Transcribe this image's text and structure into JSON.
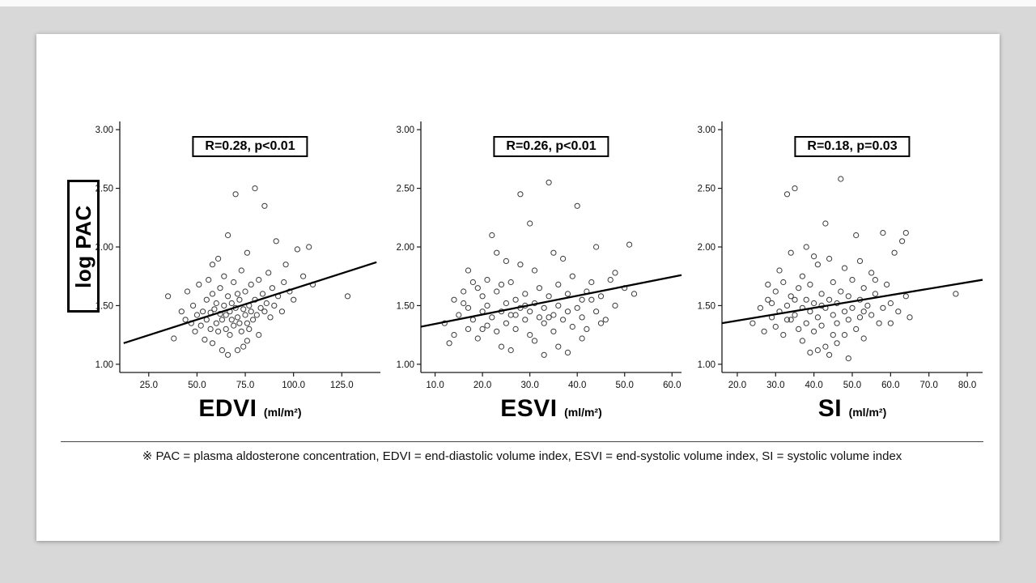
{
  "slide": {
    "y_axis_label": "log PAC",
    "footnote": "※ PAC = plasma aldosterone concentration, EDVI = end-diastolic volume index, ESVI = end-systolic volume index, SI = systolic volume index"
  },
  "chart_data": [
    {
      "type": "scatter",
      "annotation": "R=0.28, p<0.01",
      "xlabel": "EDVI",
      "xlabel_unit": "(ml/m²)",
      "ylabel": "log PAC",
      "xlim": [
        10,
        145
      ],
      "ylim": [
        0.93,
        3.07
      ],
      "xticks": [
        25.0,
        50.0,
        75.0,
        100.0,
        125.0
      ],
      "yticks": [
        1.0,
        1.5,
        2.0,
        2.5,
        3.0
      ],
      "trendline": {
        "x1": 12,
        "y1": 1.18,
        "x2": 143,
        "y2": 1.87
      },
      "points": [
        [
          35,
          1.58
        ],
        [
          38,
          1.22
        ],
        [
          42,
          1.45
        ],
        [
          44,
          1.38
        ],
        [
          45,
          1.62
        ],
        [
          47,
          1.35
        ],
        [
          48,
          1.5
        ],
        [
          49,
          1.28
        ],
        [
          50,
          1.42
        ],
        [
          51,
          1.68
        ],
        [
          52,
          1.33
        ],
        [
          53,
          1.45
        ],
        [
          54,
          1.21
        ],
        [
          55,
          1.55
        ],
        [
          55,
          1.38
        ],
        [
          56,
          1.72
        ],
        [
          57,
          1.44
        ],
        [
          57,
          1.3
        ],
        [
          58,
          1.6
        ],
        [
          58,
          1.18
        ],
        [
          59,
          1.47
        ],
        [
          60,
          1.35
        ],
        [
          60,
          1.52
        ],
        [
          61,
          1.28
        ],
        [
          61,
          1.9
        ],
        [
          62,
          1.43
        ],
        [
          62,
          1.65
        ],
        [
          63,
          1.38
        ],
        [
          63,
          1.12
        ],
        [
          64,
          1.5
        ],
        [
          64,
          1.75
        ],
        [
          65,
          1.42
        ],
        [
          65,
          1.3
        ],
        [
          66,
          1.58
        ],
        [
          66,
          2.1
        ],
        [
          67,
          1.45
        ],
        [
          67,
          1.25
        ],
        [
          68,
          1.52
        ],
        [
          68,
          1.38
        ],
        [
          69,
          1.7
        ],
        [
          69,
          1.33
        ],
        [
          70,
          1.48
        ],
        [
          70,
          2.45
        ],
        [
          71,
          1.4
        ],
        [
          71,
          1.6
        ],
        [
          72,
          1.35
        ],
        [
          72,
          1.55
        ],
        [
          73,
          1.28
        ],
        [
          73,
          1.8
        ],
        [
          74,
          1.47
        ],
        [
          74,
          1.15
        ],
        [
          75,
          1.62
        ],
        [
          75,
          1.42
        ],
        [
          76,
          1.35
        ],
        [
          76,
          1.95
        ],
        [
          77,
          1.5
        ],
        [
          77,
          1.3
        ],
        [
          78,
          1.68
        ],
        [
          78,
          1.45
        ],
        [
          79,
          1.38
        ],
        [
          80,
          2.5
        ],
        [
          80,
          1.55
        ],
        [
          81,
          1.42
        ],
        [
          82,
          1.25
        ],
        [
          82,
          1.72
        ],
        [
          83,
          1.48
        ],
        [
          84,
          1.6
        ],
        [
          85,
          2.35
        ],
        [
          85,
          1.45
        ],
        [
          86,
          1.52
        ],
        [
          87,
          1.78
        ],
        [
          88,
          1.4
        ],
        [
          89,
          1.65
        ],
        [
          90,
          1.5
        ],
        [
          91,
          2.05
        ],
        [
          92,
          1.58
        ],
        [
          94,
          1.45
        ],
        [
          95,
          1.7
        ],
        [
          96,
          1.85
        ],
        [
          98,
          1.62
        ],
        [
          100,
          1.55
        ],
        [
          102,
          1.98
        ],
        [
          105,
          1.75
        ],
        [
          108,
          2.0
        ],
        [
          110,
          1.68
        ],
        [
          128,
          1.58
        ],
        [
          66,
          1.08
        ],
        [
          71,
          1.12
        ],
        [
          76,
          1.2
        ],
        [
          58,
          1.85
        ]
      ]
    },
    {
      "type": "scatter",
      "annotation": "R=0.26, p<0.01",
      "xlabel": "ESVI",
      "xlabel_unit": "(ml/m²)",
      "ylabel": "log PAC",
      "xlim": [
        7,
        62
      ],
      "ylim": [
        0.93,
        3.07
      ],
      "xticks": [
        10.0,
        20.0,
        30.0,
        40.0,
        50.0,
        60.0
      ],
      "yticks": [
        1.0,
        1.5,
        2.0,
        2.5,
        3.0
      ],
      "trendline": {
        "x1": 7,
        "y1": 1.32,
        "x2": 62,
        "y2": 1.76
      },
      "points": [
        [
          12,
          1.35
        ],
        [
          14,
          1.55
        ],
        [
          14,
          1.25
        ],
        [
          15,
          1.42
        ],
        [
          16,
          1.62
        ],
        [
          17,
          1.3
        ],
        [
          17,
          1.48
        ],
        [
          18,
          1.38
        ],
        [
          18,
          1.7
        ],
        [
          19,
          1.22
        ],
        [
          20,
          1.45
        ],
        [
          20,
          1.58
        ],
        [
          21,
          1.33
        ],
        [
          21,
          1.5
        ],
        [
          22,
          1.4
        ],
        [
          22,
          2.1
        ],
        [
          23,
          1.28
        ],
        [
          23,
          1.62
        ],
        [
          24,
          1.45
        ],
        [
          24,
          1.15
        ],
        [
          25,
          1.52
        ],
        [
          25,
          1.35
        ],
        [
          26,
          1.7
        ],
        [
          26,
          1.42
        ],
        [
          27,
          1.3
        ],
        [
          27,
          1.55
        ],
        [
          28,
          1.48
        ],
        [
          28,
          2.45
        ],
        [
          29,
          1.38
        ],
        [
          29,
          1.6
        ],
        [
          30,
          1.25
        ],
        [
          30,
          1.45
        ],
        [
          31,
          1.52
        ],
        [
          31,
          1.8
        ],
        [
          32,
          1.4
        ],
        [
          32,
          1.65
        ],
        [
          33,
          1.35
        ],
        [
          33,
          1.48
        ],
        [
          34,
          2.55
        ],
        [
          34,
          1.58
        ],
        [
          35,
          1.42
        ],
        [
          35,
          1.28
        ],
        [
          36,
          1.68
        ],
        [
          36,
          1.5
        ],
        [
          37,
          1.38
        ],
        [
          37,
          1.9
        ],
        [
          38,
          1.45
        ],
        [
          38,
          1.6
        ],
        [
          39,
          1.32
        ],
        [
          39,
          1.75
        ],
        [
          40,
          1.48
        ],
        [
          40,
          2.35
        ],
        [
          41,
          1.55
        ],
        [
          41,
          1.4
        ],
        [
          42,
          1.62
        ],
        [
          42,
          1.3
        ],
        [
          43,
          1.7
        ],
        [
          44,
          1.45
        ],
        [
          44,
          2.0
        ],
        [
          45,
          1.58
        ],
        [
          46,
          1.38
        ],
        [
          47,
          1.72
        ],
        [
          48,
          1.5
        ],
        [
          50,
          1.65
        ],
        [
          51,
          2.02
        ],
        [
          52,
          1.6
        ],
        [
          13,
          1.18
        ],
        [
          19,
          1.65
        ],
        [
          26,
          1.12
        ],
        [
          31,
          1.2
        ],
        [
          33,
          1.08
        ],
        [
          28,
          1.85
        ],
        [
          23,
          1.95
        ],
        [
          36,
          1.15
        ],
        [
          41,
          1.22
        ],
        [
          30,
          2.2
        ],
        [
          25,
          1.88
        ],
        [
          21,
          1.72
        ],
        [
          16,
          1.52
        ],
        [
          45,
          1.35
        ],
        [
          48,
          1.78
        ],
        [
          38,
          1.1
        ],
        [
          34,
          1.4
        ],
        [
          29,
          1.5
        ],
        [
          24,
          1.68
        ],
        [
          20,
          1.3
        ],
        [
          35,
          1.95
        ],
        [
          43,
          1.55
        ],
        [
          17,
          1.8
        ],
        [
          27,
          1.42
        ]
      ]
    },
    {
      "type": "scatter",
      "annotation": "R=0.18, p=0.03",
      "xlabel": "SI",
      "xlabel_unit": "(ml/m²)",
      "ylabel": "log PAC",
      "xlim": [
        16,
        84
      ],
      "ylim": [
        0.93,
        3.07
      ],
      "xticks": [
        20.0,
        30.0,
        40.0,
        50.0,
        60.0,
        70.0,
        80.0
      ],
      "yticks": [
        1.0,
        1.5,
        2.0,
        2.5,
        3.0
      ],
      "trendline": {
        "x1": 16,
        "y1": 1.35,
        "x2": 84,
        "y2": 1.72
      },
      "points": [
        [
          24,
          1.35
        ],
        [
          26,
          1.48
        ],
        [
          27,
          1.28
        ],
        [
          28,
          1.55
        ],
        [
          29,
          1.4
        ],
        [
          30,
          1.62
        ],
        [
          30,
          1.32
        ],
        [
          31,
          1.45
        ],
        [
          32,
          1.7
        ],
        [
          32,
          1.25
        ],
        [
          33,
          1.5
        ],
        [
          33,
          2.45
        ],
        [
          34,
          1.38
        ],
        [
          34,
          1.58
        ],
        [
          35,
          1.42
        ],
        [
          35,
          2.5
        ],
        [
          36,
          1.3
        ],
        [
          36,
          1.65
        ],
        [
          37,
          1.48
        ],
        [
          37,
          1.2
        ],
        [
          38,
          1.55
        ],
        [
          38,
          1.35
        ],
        [
          39,
          1.68
        ],
        [
          39,
          1.45
        ],
        [
          40,
          1.28
        ],
        [
          40,
          1.52
        ],
        [
          41,
          1.4
        ],
        [
          41,
          1.85
        ],
        [
          42,
          1.6
        ],
        [
          42,
          1.33
        ],
        [
          43,
          1.48
        ],
        [
          43,
          1.15
        ],
        [
          44,
          1.55
        ],
        [
          44,
          1.9
        ],
        [
          45,
          1.42
        ],
        [
          45,
          1.7
        ],
        [
          46,
          1.35
        ],
        [
          46,
          1.52
        ],
        [
          47,
          2.58
        ],
        [
          47,
          1.62
        ],
        [
          48,
          1.45
        ],
        [
          48,
          1.25
        ],
        [
          49,
          1.58
        ],
        [
          49,
          1.38
        ],
        [
          50,
          1.72
        ],
        [
          50,
          1.48
        ],
        [
          51,
          1.3
        ],
        [
          51,
          2.1
        ],
        [
          52,
          1.55
        ],
        [
          52,
          1.4
        ],
        [
          53,
          1.65
        ],
        [
          53,
          1.22
        ],
        [
          54,
          1.5
        ],
        [
          55,
          1.78
        ],
        [
          55,
          1.42
        ],
        [
          56,
          1.6
        ],
        [
          57,
          1.35
        ],
        [
          58,
          2.12
        ],
        [
          58,
          1.48
        ],
        [
          59,
          1.68
        ],
        [
          60,
          1.52
        ],
        [
          61,
          1.95
        ],
        [
          62,
          1.45
        ],
        [
          63,
          2.05
        ],
        [
          64,
          1.58
        ],
        [
          65,
          1.4
        ],
        [
          41,
          1.12
        ],
        [
          44,
          1.08
        ],
        [
          46,
          1.18
        ],
        [
          49,
          1.05
        ],
        [
          37,
          1.75
        ],
        [
          34,
          1.95
        ],
        [
          31,
          1.8
        ],
        [
          28,
          1.68
        ],
        [
          43,
          2.2
        ],
        [
          39,
          1.1
        ],
        [
          52,
          1.88
        ],
        [
          56,
          1.72
        ],
        [
          60,
          1.35
        ],
        [
          45,
          1.25
        ],
        [
          35,
          1.55
        ],
        [
          40,
          1.92
        ],
        [
          48,
          1.82
        ],
        [
          53,
          1.45
        ],
        [
          29,
          1.52
        ],
        [
          33,
          1.38
        ],
        [
          77,
          1.6
        ],
        [
          64,
          2.12
        ],
        [
          38,
          2.0
        ],
        [
          42,
          1.5
        ]
      ]
    }
  ]
}
